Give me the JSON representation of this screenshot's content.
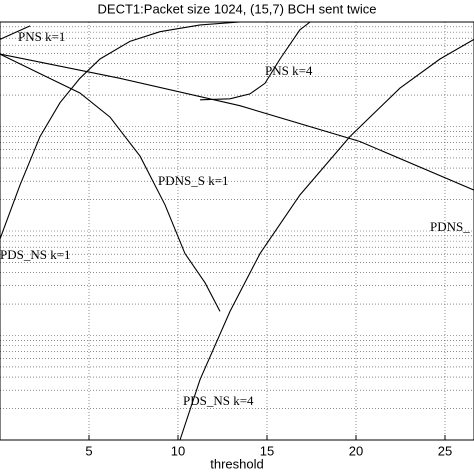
{
  "chart_data": {
    "type": "line",
    "title": "DECT1:Packet size 1024, (15,7) BCH sent twice",
    "x_label": "threshold",
    "xlim": [
      0,
      26.63
    ],
    "xticks": [
      5,
      10,
      15,
      20,
      25
    ],
    "ylim": [
      0.0001,
      1
    ],
    "log_y": true,
    "grid": true,
    "series": [
      {
        "name": "PNS k=1",
        "color": "#000000",
        "x": [
          0,
          0.84,
          1.69
        ],
        "values": [
          0.681,
          0.791,
          0.918
        ]
      },
      {
        "name": "PNS k=4",
        "color": "#000000",
        "x": [
          11.24,
          12.92,
          14.04,
          14.89,
          15.73,
          16.85,
          17.42
        ],
        "values": [
          0.18,
          0.184,
          0.205,
          0.259,
          0.443,
          0.843,
          1
        ]
      },
      {
        "name": "PDNS_S k=1",
        "color": "#000000",
        "x": [
          0,
          2.25,
          4.49,
          6.18,
          7.87,
          9.27,
          10.39,
          11.52,
          12.36
        ],
        "values": [
          0.493,
          0.321,
          0.209,
          0.123,
          0.052,
          0.0178,
          0.0061,
          0.0032,
          0.0017
        ]
      },
      {
        "name": "PDS_NS k=1",
        "color": "#000000",
        "x": [
          0,
          1.12,
          2.25,
          3.37,
          4.49,
          5.62,
          7.3,
          8.99,
          11.24,
          13.48
        ],
        "values": [
          0.0084,
          0.0274,
          0.08,
          0.169,
          0.289,
          0.443,
          0.652,
          0.807,
          0.938,
          1
        ]
      },
      {
        "name": "PDS_NS k=4",
        "color": "#000000",
        "x": [
          10.11,
          11.24,
          12.92,
          14.61,
          16.85,
          19.66,
          22.47,
          24.72,
          26.63
        ],
        "values": [
          0.0001,
          0.00038,
          0.0017,
          0.0061,
          0.0221,
          0.08,
          0.233,
          0.443,
          0.681
        ]
      },
      {
        "name": "PDNS_",
        "color": "#000000",
        "x": [
          0,
          6.74,
          13.48,
          20.22,
          26.63
        ],
        "values": [
          0.493,
          0.289,
          0.158,
          0.0718,
          0.0246
        ]
      }
    ]
  }
}
